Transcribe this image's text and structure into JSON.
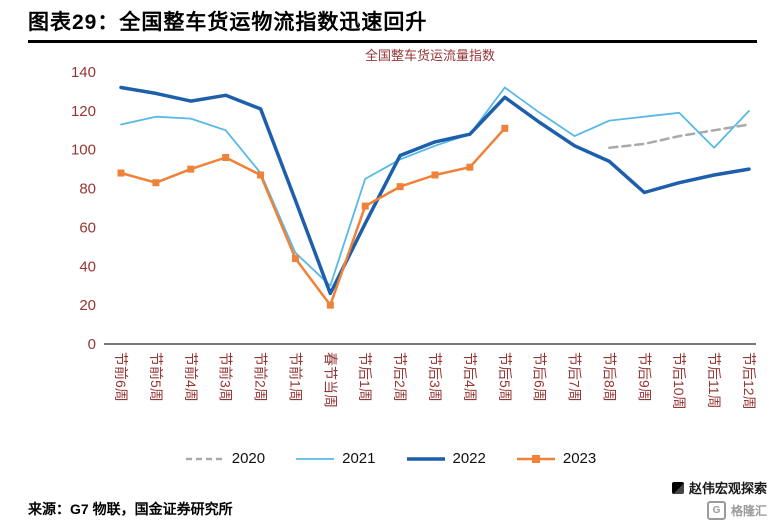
{
  "header": {
    "title": "图表29：全国整车货运物流指数迅速回升"
  },
  "chart_data": {
    "type": "line",
    "title": "全国整车货运流量指数",
    "title_color": "#943634",
    "axis_label_color": "#943634",
    "axis_line_color": "#2b2b2b",
    "ylim": [
      0,
      140
    ],
    "ytick_step": 20,
    "grid": false,
    "legend_position": "bottom",
    "categories": [
      "节前6周",
      "节前5周",
      "节前4周",
      "节前3周",
      "节前2周",
      "节前1周",
      "春节当周",
      "节后1周",
      "节后2周",
      "节后3周",
      "节后4周",
      "节后5周",
      "节后6周",
      "节后7周",
      "节后8周",
      "节后9周",
      "节后10周",
      "节后11周",
      "节后12周"
    ],
    "series": [
      {
        "name": "2020",
        "color": "#a9a9a9",
        "style": "dashed",
        "width": 2.5,
        "marker": "none",
        "values": [
          null,
          null,
          null,
          null,
          null,
          null,
          null,
          null,
          null,
          null,
          null,
          null,
          null,
          null,
          101,
          103,
          107,
          110,
          113
        ]
      },
      {
        "name": "2021",
        "color": "#58b9e6",
        "style": "solid",
        "width": 1.8,
        "marker": "none",
        "values": [
          113,
          117,
          116,
          110,
          88,
          47,
          30,
          85,
          95,
          102,
          108,
          132,
          119,
          107,
          115,
          117,
          119,
          101,
          120
        ]
      },
      {
        "name": "2022",
        "color": "#1d5fab",
        "style": "solid",
        "width": 3.5,
        "marker": "none",
        "values": [
          132,
          129,
          125,
          128,
          121,
          74,
          26,
          62,
          97,
          104,
          108,
          127,
          114,
          102,
          94,
          78,
          83,
          87,
          90
        ]
      },
      {
        "name": "2023",
        "color": "#f08138",
        "style": "solid",
        "width": 2.5,
        "marker": "square",
        "values": [
          88,
          83,
          90,
          96,
          87,
          44,
          20,
          71,
          81,
          87,
          91,
          111,
          null,
          null,
          null,
          null,
          null,
          null,
          null
        ]
      }
    ]
  },
  "source": {
    "text": "来源：G7 物联，国金证券研究所"
  },
  "watermark": {
    "account": "赵伟宏观探索",
    "logo_letter": "G",
    "platform": "格隆汇"
  }
}
